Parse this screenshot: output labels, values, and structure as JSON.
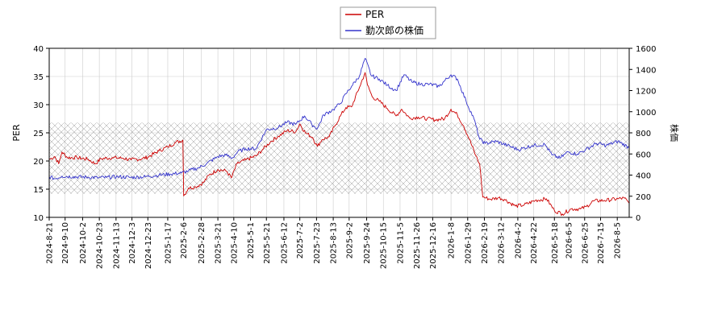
{
  "chart_data": {
    "type": "line",
    "title": "",
    "legend": {
      "placement": "top-center",
      "entries": [
        {
          "name": "PER",
          "color": "#cc0000"
        },
        {
          "name": "勤次郎の株価",
          "color": "#3333cc"
        }
      ]
    },
    "y_left": {
      "label": "PER",
      "range": [
        10,
        40
      ],
      "ticks": [
        "10",
        "15",
        "20",
        "25",
        "30",
        "35",
        "40"
      ]
    },
    "y_right": {
      "label": "株価",
      "range": [
        0,
        1600
      ],
      "ticks": [
        "0",
        "200",
        "400",
        "600",
        "800",
        "1000",
        "1200",
        "1400",
        "1600"
      ]
    },
    "x_range": [
      "2024-08-21",
      "2026-08-20"
    ],
    "x_ticks": [
      "2024-8-21",
      "2024-9-10",
      "2024-10-2",
      "2024-10-23",
      "2024-11-13",
      "2024-12-3",
      "2024-12-23",
      "2025-1-17",
      "2025-2-6",
      "2025-2-28",
      "2025-3-21",
      "2025-4-10",
      "2025-5-1",
      "2025-5-21",
      "2025-6-12",
      "2025-7-2",
      "2025-7-23",
      "2025-8-13",
      "2025-9-2",
      "2025-9-24",
      "2025-10-15",
      "2025-11-5",
      "2025-11-26",
      "2025-12-16",
      "2026-1-8",
      "2026-1-29",
      "2026-2-19",
      "2026-3-12",
      "2026-4-2",
      "2026-4-22",
      "2026-5-18",
      "2026-6-5",
      "2026-6-25",
      "2026-7-15",
      "2026-8-5"
    ],
    "grid": true,
    "band": {
      "axis": "left",
      "from": 14.2,
      "to": 26.8,
      "pattern": "crosshatch"
    },
    "series": [
      {
        "name": "PER",
        "axis": "left",
        "color": "#cc0000",
        "points": [
          [
            "2024-08-21",
            20.3
          ],
          [
            "2024-08-28",
            20.8
          ],
          [
            "2024-09-02",
            19.5
          ],
          [
            "2024-09-06",
            21.6
          ],
          [
            "2024-09-13",
            20.6
          ],
          [
            "2024-09-25",
            20.6
          ],
          [
            "2024-10-09",
            20.3
          ],
          [
            "2024-10-18",
            19.5
          ],
          [
            "2024-10-25",
            20.4
          ],
          [
            "2024-11-08",
            20.6
          ],
          [
            "2024-11-22",
            20.5
          ],
          [
            "2024-12-02",
            20.2
          ],
          [
            "2024-12-16",
            20.4
          ],
          [
            "2024-12-23",
            20.7
          ],
          [
            "2025-01-06",
            21.8
          ],
          [
            "2025-01-17",
            22.5
          ],
          [
            "2025-01-27",
            23.3
          ],
          [
            "2025-02-05",
            23.7
          ],
          [
            "2025-02-06",
            13.8
          ],
          [
            "2025-02-12",
            15.2
          ],
          [
            "2025-02-21",
            15.4
          ],
          [
            "2025-03-03",
            16.2
          ],
          [
            "2025-03-10",
            17.5
          ],
          [
            "2025-03-21",
            18.5
          ],
          [
            "2025-04-01",
            18.2
          ],
          [
            "2025-04-07",
            17.0
          ],
          [
            "2025-04-14",
            19.5
          ],
          [
            "2025-04-25",
            20.2
          ],
          [
            "2025-05-08",
            20.9
          ],
          [
            "2025-05-16",
            22.0
          ],
          [
            "2025-05-26",
            23.4
          ],
          [
            "2025-06-05",
            24.4
          ],
          [
            "2025-06-16",
            25.4
          ],
          [
            "2025-06-27",
            25.2
          ],
          [
            "2025-07-02",
            26.6
          ],
          [
            "2025-07-09",
            25.0
          ],
          [
            "2025-07-18",
            24.2
          ],
          [
            "2025-07-24",
            22.6
          ],
          [
            "2025-07-30",
            23.8
          ],
          [
            "2025-08-08",
            24.3
          ],
          [
            "2025-08-15",
            26.2
          ],
          [
            "2025-08-22",
            28.0
          ],
          [
            "2025-08-29",
            29.5
          ],
          [
            "2025-09-05",
            29.6
          ],
          [
            "2025-09-15",
            33.1
          ],
          [
            "2025-09-22",
            35.7
          ],
          [
            "2025-09-25",
            33.5
          ],
          [
            "2025-10-01",
            31.4
          ],
          [
            "2025-10-10",
            30.6
          ],
          [
            "2025-10-20",
            29.3
          ],
          [
            "2025-10-31",
            28.0
          ],
          [
            "2025-11-07",
            29.2
          ],
          [
            "2025-11-17",
            27.6
          ],
          [
            "2025-11-28",
            27.8
          ],
          [
            "2025-12-09",
            27.5
          ],
          [
            "2025-12-19",
            27.3
          ],
          [
            "2025-12-31",
            27.5
          ],
          [
            "2026-01-08",
            29.2
          ],
          [
            "2026-01-16",
            28.2
          ],
          [
            "2026-01-24",
            26.2
          ],
          [
            "2026-01-31",
            23.9
          ],
          [
            "2026-02-08",
            21.0
          ],
          [
            "2026-02-13",
            19.5
          ],
          [
            "2026-02-17",
            13.6
          ],
          [
            "2026-02-27",
            13.2
          ],
          [
            "2026-03-09",
            13.5
          ],
          [
            "2026-03-16",
            13.2
          ],
          [
            "2026-03-30",
            12.0
          ],
          [
            "2026-04-10",
            12.2
          ],
          [
            "2026-04-24",
            13.0
          ],
          [
            "2026-05-08",
            13.3
          ],
          [
            "2026-05-18",
            11.2
          ],
          [
            "2026-05-28",
            10.6
          ],
          [
            "2026-06-08",
            11.5
          ],
          [
            "2026-06-20",
            11.5
          ],
          [
            "2026-06-27",
            11.9
          ],
          [
            "2026-07-06",
            12.9
          ],
          [
            "2026-07-20",
            13.0
          ],
          [
            "2026-08-06",
            13.3
          ],
          [
            "2026-08-14",
            13.4
          ],
          [
            "2026-08-20",
            12.5
          ]
        ]
      },
      {
        "name": "勤次郎の株価",
        "axis": "right",
        "color": "#3333cc",
        "points": [
          [
            "2024-08-21",
            385
          ],
          [
            "2024-08-28",
            365
          ],
          [
            "2024-09-06",
            390
          ],
          [
            "2024-09-20",
            385
          ],
          [
            "2024-10-09",
            380
          ],
          [
            "2024-10-22",
            375
          ],
          [
            "2024-11-01",
            378
          ],
          [
            "2024-11-15",
            385
          ],
          [
            "2024-12-02",
            378
          ],
          [
            "2024-12-20",
            385
          ],
          [
            "2025-01-06",
            400
          ],
          [
            "2025-01-20",
            410
          ],
          [
            "2025-02-03",
            420
          ],
          [
            "2025-02-12",
            440
          ],
          [
            "2025-02-25",
            470
          ],
          [
            "2025-03-07",
            510
          ],
          [
            "2025-03-21",
            575
          ],
          [
            "2025-03-31",
            590
          ],
          [
            "2025-04-08",
            560
          ],
          [
            "2025-04-15",
            620
          ],
          [
            "2025-04-25",
            650
          ],
          [
            "2025-05-08",
            650
          ],
          [
            "2025-05-21",
            830
          ],
          [
            "2025-06-05",
            850
          ],
          [
            "2025-06-16",
            900
          ],
          [
            "2025-06-27",
            880
          ],
          [
            "2025-07-08",
            960
          ],
          [
            "2025-07-17",
            880
          ],
          [
            "2025-07-24",
            840
          ],
          [
            "2025-08-01",
            970
          ],
          [
            "2025-08-13",
            1020
          ],
          [
            "2025-08-22",
            1080
          ],
          [
            "2025-08-29",
            1170
          ],
          [
            "2025-09-05",
            1240
          ],
          [
            "2025-09-15",
            1340
          ],
          [
            "2025-09-22",
            1505
          ],
          [
            "2025-09-30",
            1340
          ],
          [
            "2025-10-10",
            1310
          ],
          [
            "2025-10-20",
            1250
          ],
          [
            "2025-10-31",
            1200
          ],
          [
            "2025-11-10",
            1350
          ],
          [
            "2025-11-20",
            1280
          ],
          [
            "2025-12-01",
            1260
          ],
          [
            "2025-12-12",
            1260
          ],
          [
            "2025-12-24",
            1240
          ],
          [
            "2026-01-08",
            1350
          ],
          [
            "2026-01-16",
            1310
          ],
          [
            "2026-01-27",
            1100
          ],
          [
            "2026-02-06",
            930
          ],
          [
            "2026-02-13",
            740
          ],
          [
            "2026-02-20",
            700
          ],
          [
            "2026-03-06",
            720
          ],
          [
            "2026-03-20",
            680
          ],
          [
            "2026-04-03",
            640
          ],
          [
            "2026-04-20",
            680
          ],
          [
            "2026-05-06",
            690
          ],
          [
            "2026-05-15",
            590
          ],
          [
            "2026-05-25",
            560
          ],
          [
            "2026-06-04",
            620
          ],
          [
            "2026-06-16",
            600
          ],
          [
            "2026-06-26",
            640
          ],
          [
            "2026-07-10",
            700
          ],
          [
            "2026-07-22",
            680
          ],
          [
            "2026-08-06",
            720
          ],
          [
            "2026-08-20",
            660
          ]
        ]
      }
    ]
  }
}
